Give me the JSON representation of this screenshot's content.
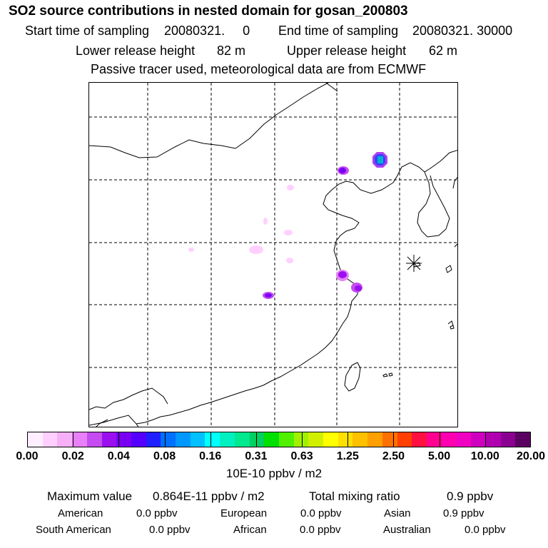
{
  "header": {
    "title": "SO2 source contributions in nested domain for gosan_200803",
    "start_label": "Start time of sampling",
    "start_value": "20080321.     0",
    "end_label": "End time of sampling",
    "end_value": "20080321. 30000",
    "lower_label": "Lower release height",
    "lower_value": "82 m",
    "upper_label": "Upper release height",
    "upper_value": "62 m",
    "note": "Passive tracer used, meteorological data are from ECMWF"
  },
  "map": {
    "receptor_marker": "asterisk-receptor-icon"
  },
  "colorbar": {
    "colors": [
      "#ffeeff",
      "#ffd0ff",
      "#f7b0f7",
      "#e880f8",
      "#c44cf0",
      "#9a10ee",
      "#7a00f4",
      "#5500ff",
      "#2020ff",
      "#0070ff",
      "#0098ff",
      "#00c0ff",
      "#00ffff",
      "#00f0c0",
      "#00e890",
      "#00d060",
      "#00e000",
      "#50f000",
      "#a0f000",
      "#d0f000",
      "#ffff00",
      "#ffe000",
      "#ffc000",
      "#ffa000",
      "#ff7000",
      "#ff4000",
      "#ff1040",
      "#ff0090",
      "#ff00b0",
      "#f000c0",
      "#d000c0",
      "#b000b0",
      "#8a0090",
      "#5a0060"
    ],
    "ticks": [
      "0.00",
      "0.02",
      "0.04",
      "0.08",
      "0.16",
      "0.31",
      "0.63",
      "1.25",
      "2.50",
      "5.00",
      "10.00",
      "20.00"
    ],
    "units": "10E-10 ppbv / m2"
  },
  "summary": {
    "max_label": "Maximum value",
    "max_value": "0.864E-11 ppbv / m2",
    "total_label": "Total mixing ratio",
    "total_value": "0.9 ppbv",
    "regions": [
      {
        "name": "American",
        "value": "0.0 ppbv"
      },
      {
        "name": "European",
        "value": "0.0 ppbv"
      },
      {
        "name": "Asian",
        "value": "0.9 ppbv"
      },
      {
        "name": "South American",
        "value": "0.0 ppbv"
      },
      {
        "name": "African",
        "value": "0.0 ppbv"
      },
      {
        "name": "Australian",
        "value": "0.0 ppbv"
      }
    ]
  }
}
